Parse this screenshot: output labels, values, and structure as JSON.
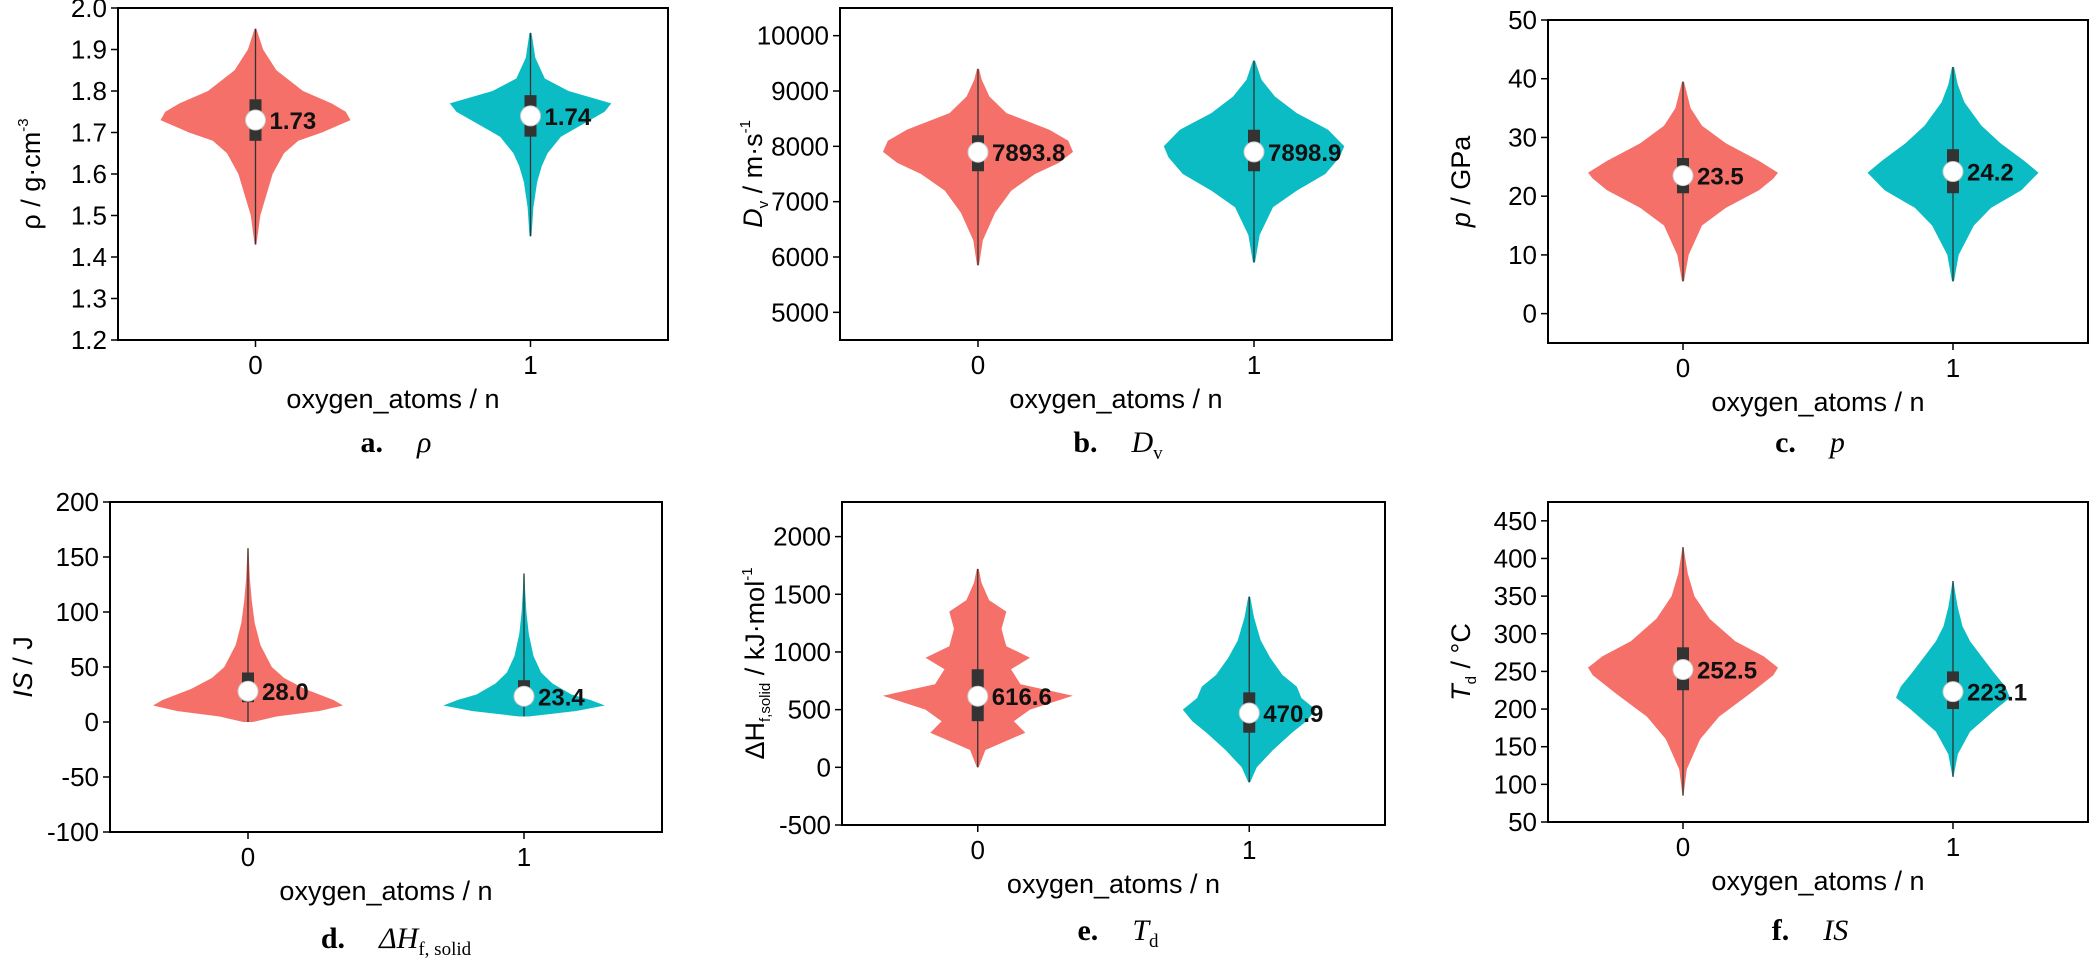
{
  "colors": {
    "group0": "#f47068",
    "group1": "#0bbcc4",
    "box": "#333333",
    "median": "#ffffff",
    "axis": "#000000"
  },
  "chart_data": [
    {
      "type": "violin",
      "ylabel": "ρ / g·cm",
      "ylabel_sup": "-3",
      "xlabel": "oxygen_atoms / n",
      "categories": [
        "0",
        "1"
      ],
      "ylim": [
        1.2,
        2.0
      ],
      "yticks": [
        1.2,
        1.3,
        1.4,
        1.5,
        1.6,
        1.7,
        1.8,
        1.9,
        2.0
      ],
      "ytick_labels": [
        "1.2",
        "1.3",
        "1.4",
        "1.5",
        "1.6",
        "1.7",
        "1.8",
        "1.9",
        "2.0"
      ],
      "caption_letter": "a.",
      "caption_symbol": "ρ",
      "series": [
        {
          "x": "0",
          "mean": 1.73,
          "label": "1.73",
          "min": 1.43,
          "max": 1.95,
          "q1": 1.68,
          "q3": 1.78,
          "profile": [
            [
              1.43,
              0.01
            ],
            [
              1.5,
              0.05
            ],
            [
              1.6,
              0.18
            ],
            [
              1.65,
              0.3
            ],
            [
              1.68,
              0.45
            ],
            [
              1.7,
              0.7
            ],
            [
              1.72,
              0.9
            ],
            [
              1.73,
              1.0
            ],
            [
              1.75,
              0.95
            ],
            [
              1.77,
              0.8
            ],
            [
              1.8,
              0.5
            ],
            [
              1.85,
              0.22
            ],
            [
              1.9,
              0.08
            ],
            [
              1.95,
              0.01
            ]
          ]
        },
        {
          "x": "1",
          "mean": 1.74,
          "label": "1.74",
          "min": 1.45,
          "max": 1.94,
          "q1": 1.69,
          "q3": 1.79,
          "profile": [
            [
              1.45,
              0.01
            ],
            [
              1.52,
              0.03
            ],
            [
              1.58,
              0.07
            ],
            [
              1.62,
              0.12
            ],
            [
              1.65,
              0.18
            ],
            [
              1.69,
              0.32
            ],
            [
              1.72,
              0.55
            ],
            [
              1.75,
              0.78
            ],
            [
              1.77,
              0.85
            ],
            [
              1.8,
              0.4
            ],
            [
              1.83,
              0.15
            ],
            [
              1.88,
              0.05
            ],
            [
              1.94,
              0.01
            ]
          ]
        }
      ]
    },
    {
      "type": "violin",
      "ylabel": "D",
      "ylabel_sub": "v",
      "ylabel_rest": " / m·s",
      "ylabel_sup": "-1",
      "xlabel": "oxygen_atoms / n",
      "categories": [
        "0",
        "1"
      ],
      "ylim": [
        4500,
        10500
      ],
      "yticks": [
        5000,
        6000,
        7000,
        8000,
        9000,
        10000
      ],
      "ytick_labels": [
        "5000",
        "6000",
        "7000",
        "8000",
        "9000",
        "10000"
      ],
      "caption_letter": "b.",
      "caption_symbol": "D",
      "caption_sub": "v",
      "series": [
        {
          "x": "0",
          "mean": 7893.8,
          "label": "7893.8",
          "min": 5850,
          "max": 9400,
          "q1": 7550,
          "q3": 8200,
          "profile": [
            [
              5850,
              0.01
            ],
            [
              6300,
              0.05
            ],
            [
              6800,
              0.18
            ],
            [
              7200,
              0.35
            ],
            [
              7500,
              0.6
            ],
            [
              7700,
              0.85
            ],
            [
              7900,
              1.0
            ],
            [
              8100,
              0.95
            ],
            [
              8300,
              0.75
            ],
            [
              8600,
              0.3
            ],
            [
              8900,
              0.12
            ],
            [
              9200,
              0.04
            ],
            [
              9400,
              0.01
            ]
          ]
        },
        {
          "x": "1",
          "mean": 7898.9,
          "label": "7898.9",
          "min": 5900,
          "max": 9550,
          "q1": 7550,
          "q3": 8300,
          "profile": [
            [
              5900,
              0.01
            ],
            [
              6400,
              0.06
            ],
            [
              6900,
              0.2
            ],
            [
              7200,
              0.45
            ],
            [
              7500,
              0.75
            ],
            [
              7800,
              0.9
            ],
            [
              8000,
              0.95
            ],
            [
              8300,
              0.78
            ],
            [
              8600,
              0.45
            ],
            [
              8900,
              0.22
            ],
            [
              9200,
              0.08
            ],
            [
              9550,
              0.01
            ]
          ]
        }
      ]
    },
    {
      "type": "violin",
      "ylabel": "p",
      "ylabel_rest": " / GPa",
      "xlabel": "oxygen_atoms / n",
      "categories": [
        "0",
        "1"
      ],
      "ylim": [
        -5,
        50
      ],
      "yticks": [
        0,
        10,
        20,
        30,
        40,
        50
      ],
      "ytick_labels": [
        "0",
        "10",
        "20",
        "30",
        "40",
        "50"
      ],
      "caption_letter": "c.",
      "caption_symbol": "p",
      "series": [
        {
          "x": "0",
          "mean": 23.5,
          "label": "23.5",
          "min": 5.5,
          "max": 39.5,
          "q1": 20.5,
          "q3": 26.5,
          "profile": [
            [
              5.5,
              0.01
            ],
            [
              10,
              0.06
            ],
            [
              15,
              0.2
            ],
            [
              18,
              0.45
            ],
            [
              21,
              0.8
            ],
            [
              23,
              0.95
            ],
            [
              24,
              1.0
            ],
            [
              26,
              0.8
            ],
            [
              29,
              0.45
            ],
            [
              32,
              0.2
            ],
            [
              35,
              0.08
            ],
            [
              39.5,
              0.01
            ]
          ]
        },
        {
          "x": "1",
          "mean": 24.2,
          "label": "24.2",
          "min": 5.5,
          "max": 42,
          "q1": 20.5,
          "q3": 28,
          "profile": [
            [
              5.5,
              0.01
            ],
            [
              10,
              0.06
            ],
            [
              15,
              0.22
            ],
            [
              18,
              0.4
            ],
            [
              21,
              0.72
            ],
            [
              24,
              0.9
            ],
            [
              26,
              0.75
            ],
            [
              29,
              0.5
            ],
            [
              32,
              0.3
            ],
            [
              36,
              0.12
            ],
            [
              39,
              0.05
            ],
            [
              42,
              0.01
            ]
          ]
        }
      ]
    },
    {
      "type": "violin",
      "ylabel": "IS",
      "ylabel_rest": " / J",
      "xlabel": "oxygen_atoms / n",
      "categories": [
        "0",
        "1"
      ],
      "ylim": [
        -100,
        200
      ],
      "yticks": [
        -100,
        -50,
        0,
        50,
        100,
        150,
        200
      ],
      "ytick_labels": [
        "-100",
        "-50",
        "0",
        "50",
        "100",
        "150",
        "200"
      ],
      "caption_letter": "d.",
      "caption_symbol": "ΔH",
      "caption_sub": "f, solid",
      "series": [
        {
          "x": "0",
          "mean": 28.0,
          "label": "28.0",
          "min": 0,
          "max": 158,
          "q1": 18,
          "q3": 45,
          "profile": [
            [
              0,
              0.05
            ],
            [
              5,
              0.3
            ],
            [
              10,
              0.75
            ],
            [
              15,
              1.0
            ],
            [
              20,
              0.9
            ],
            [
              30,
              0.6
            ],
            [
              40,
              0.38
            ],
            [
              50,
              0.25
            ],
            [
              70,
              0.13
            ],
            [
              90,
              0.07
            ],
            [
              110,
              0.04
            ],
            [
              130,
              0.02
            ],
            [
              158,
              0.005
            ]
          ]
        },
        {
          "x": "1",
          "mean": 23.4,
          "label": "23.4",
          "min": 5,
          "max": 135,
          "q1": 15,
          "q3": 38,
          "profile": [
            [
              5,
              0.05
            ],
            [
              10,
              0.55
            ],
            [
              15,
              0.85
            ],
            [
              20,
              0.7
            ],
            [
              25,
              0.5
            ],
            [
              35,
              0.3
            ],
            [
              45,
              0.18
            ],
            [
              60,
              0.1
            ],
            [
              80,
              0.05
            ],
            [
              100,
              0.025
            ],
            [
              120,
              0.012
            ],
            [
              135,
              0.005
            ]
          ]
        }
      ]
    },
    {
      "type": "violin",
      "ylabel": "ΔH",
      "ylabel_sub": "f,solid",
      "ylabel_rest": " / kJ·mol",
      "ylabel_sup": "-1",
      "xlabel": "oxygen_atoms / n",
      "categories": [
        "0",
        "1"
      ],
      "ylim": [
        -500,
        2300
      ],
      "yticks": [
        -500,
        0,
        500,
        1000,
        1500,
        2000
      ],
      "ytick_labels": [
        "-500",
        "0",
        "500",
        "1000",
        "1500",
        "2000"
      ],
      "caption_letter": "e.",
      "caption_symbol": "T",
      "caption_sub": "d",
      "series": [
        {
          "x": "0",
          "mean": 616.6,
          "label": "616.6",
          "min": 0,
          "max": 1720,
          "q1": 400,
          "q3": 850,
          "profile": [
            [
              0,
              0.01
            ],
            [
              150,
              0.08
            ],
            [
              300,
              0.5
            ],
            [
              400,
              0.38
            ],
            [
              500,
              0.55
            ],
            [
              620,
              1.0
            ],
            [
              720,
              0.45
            ],
            [
              850,
              0.35
            ],
            [
              950,
              0.55
            ],
            [
              1050,
              0.3
            ],
            [
              1200,
              0.25
            ],
            [
              1350,
              0.3
            ],
            [
              1450,
              0.12
            ],
            [
              1600,
              0.04
            ],
            [
              1720,
              0.01
            ]
          ]
        },
        {
          "x": "1",
          "mean": 470.9,
          "label": "470.9",
          "min": -130,
          "max": 1480,
          "q1": 300,
          "q3": 650,
          "profile": [
            [
              -130,
              0.01
            ],
            [
              0,
              0.08
            ],
            [
              150,
              0.25
            ],
            [
              300,
              0.45
            ],
            [
              400,
              0.6
            ],
            [
              500,
              0.7
            ],
            [
              600,
              0.55
            ],
            [
              700,
              0.5
            ],
            [
              800,
              0.35
            ],
            [
              950,
              0.22
            ],
            [
              1100,
              0.12
            ],
            [
              1300,
              0.05
            ],
            [
              1480,
              0.01
            ]
          ]
        }
      ]
    },
    {
      "type": "violin",
      "ylabel": "T",
      "ylabel_sub": "d",
      "ylabel_rest": " / °C",
      "xlabel": "oxygen_atoms / n",
      "categories": [
        "0",
        "1"
      ],
      "ylim": [
        50,
        475
      ],
      "yticks": [
        50,
        100,
        150,
        200,
        250,
        300,
        350,
        400,
        450
      ],
      "ytick_labels": [
        "50",
        "100",
        "150",
        "200",
        "250",
        "300",
        "350",
        "400",
        "450"
      ],
      "caption_letter": "f.",
      "caption_symbol": "IS",
      "series": [
        {
          "x": "0",
          "mean": 252.5,
          "label": "252.5",
          "min": 85,
          "max": 415,
          "q1": 225,
          "q3": 282,
          "profile": [
            [
              85,
              0.005
            ],
            [
              120,
              0.04
            ],
            [
              160,
              0.18
            ],
            [
              190,
              0.38
            ],
            [
              220,
              0.7
            ],
            [
              245,
              0.95
            ],
            [
              255,
              1.0
            ],
            [
              270,
              0.85
            ],
            [
              290,
              0.55
            ],
            [
              320,
              0.28
            ],
            [
              350,
              0.12
            ],
            [
              380,
              0.05
            ],
            [
              415,
              0.005
            ]
          ]
        },
        {
          "x": "1",
          "mean": 223.1,
          "label": "223.1",
          "min": 110,
          "max": 370,
          "q1": 200,
          "q3": 250,
          "profile": [
            [
              110,
              0.005
            ],
            [
              140,
              0.05
            ],
            [
              170,
              0.18
            ],
            [
              200,
              0.45
            ],
            [
              215,
              0.6
            ],
            [
              230,
              0.55
            ],
            [
              250,
              0.42
            ],
            [
              270,
              0.3
            ],
            [
              290,
              0.18
            ],
            [
              310,
              0.1
            ],
            [
              335,
              0.05
            ],
            [
              350,
              0.03
            ],
            [
              370,
              0.005
            ]
          ]
        }
      ]
    }
  ]
}
